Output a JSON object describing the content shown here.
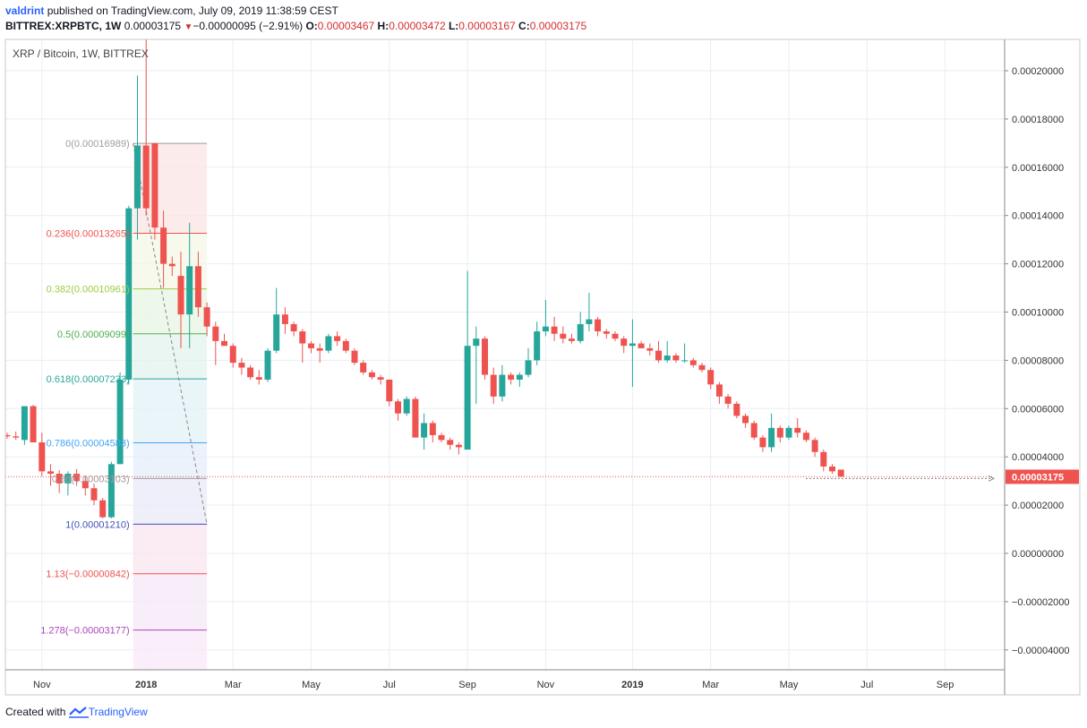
{
  "header": {
    "user": "valdrint",
    "published_text": "published on TradingView.com, July 09, 2019 11:38:59 CEST",
    "symbol": "BITTREX:XRPBTC, 1W",
    "last": "0.00003175",
    "change_arrow": "▼",
    "change": "−0.00000095 (−2.91%)",
    "o_label": "O:",
    "o": "0.00003467",
    "h_label": "H:",
    "h": "0.00003472",
    "l_label": "L:",
    "l": "0.00003167",
    "c_label": "C:",
    "c": "0.00003175"
  },
  "chart_title": "XRP / Bitcoin, 1W, BITTREX",
  "footer": {
    "created_with": "Created with",
    "brand": "TradingView"
  },
  "colors": {
    "up": "#26a69a",
    "down": "#ef5350",
    "grid": "#e8eef5",
    "price_label": "#ef5350"
  },
  "chart_data": {
    "type": "candlestick",
    "title": "XRP / Bitcoin, 1W, BITTREX",
    "ylim": [
      -4.8e-05,
      0.000212
    ],
    "y_ticks": [
      0.0002,
      0.00018,
      0.00016,
      0.00014,
      0.00012,
      0.0001,
      8e-05,
      6e-05,
      4e-05,
      2e-05,
      0.0,
      -2e-05,
      -4e-05
    ],
    "y_tick_labels": [
      "0.00020000",
      "0.00018000",
      "0.00016000",
      "0.00014000",
      "0.00012000",
      "0.00010000",
      "0.00008000",
      "0.00006000",
      "0.00004000",
      "0.00002000",
      "0.00000000",
      "−0.00002000",
      "−0.00004000"
    ],
    "x_labels": [
      {
        "label": "Nov",
        "week": 4
      },
      {
        "label": "2018",
        "week": 16,
        "bold": true
      },
      {
        "label": "Mar",
        "week": 26
      },
      {
        "label": "May",
        "week": 35
      },
      {
        "label": "Jul",
        "week": 44
      },
      {
        "label": "Sep",
        "week": 53
      },
      {
        "label": "Nov",
        "week": 62
      },
      {
        "label": "2019",
        "week": 72,
        "bold": true
      },
      {
        "label": "Mar",
        "week": 81
      },
      {
        "label": "May",
        "week": 90
      },
      {
        "label": "Jul",
        "week": 99
      },
      {
        "label": "Sep",
        "week": 108
      }
    ],
    "last_price": 3.175e-05,
    "last_price_label": "0.00003175",
    "candles": [
      [
        4.9e-05,
        5e-05,
        4.75e-05,
        4.85e-05
      ],
      [
        4.85e-05,
        5.05e-05,
        4.7e-05,
        4.8e-05
      ],
      [
        4.7e-05,
        6.1e-05,
        4.5e-05,
        6.1e-05
      ],
      [
        6.1e-05,
        6.15e-05,
        4.6e-05,
        4.6e-05
      ],
      [
        4.6e-05,
        5e-05,
        3.2e-05,
        3.4e-05
      ],
      [
        3.4e-05,
        3.7e-05,
        2.8e-05,
        3.3e-05
      ],
      [
        3.3e-05,
        3.45e-05,
        2.5e-05,
        2.9e-05
      ],
      [
        2.9e-05,
        3.4e-05,
        2.4e-05,
        3.3e-05
      ],
      [
        3.3e-05,
        3.5e-05,
        2.8e-05,
        3e-05
      ],
      [
        3e-05,
        3.2e-05,
        2.4e-05,
        2.7e-05
      ],
      [
        2.7e-05,
        2.9e-05,
        2e-05,
        2.2e-05
      ],
      [
        2.2e-05,
        2.3e-05,
        1.45e-05,
        1.5e-05
      ],
      [
        1.5e-05,
        3.8e-05,
        1.45e-05,
        3.7e-05
      ],
      [
        3.7e-05,
        7.5e-05,
        3.7e-05,
        7.2e-05
      ],
      [
        7.2e-05,
        0.000144,
        7e-05,
        0.000143
      ],
      [
        0.000143,
        0.000198,
        0.00013,
        0.000169
      ],
      [
        0.000169,
        0.000245,
        0.00014,
        0.000143
      ],
      [
        0.00017,
        0.00017,
        0.00013,
        0.000135
      ],
      [
        0.000135,
        0.000142,
        0.00011,
        0.00012
      ],
      [
        0.00012,
        0.000123,
        0.000115,
        0.000119
      ],
      [
        0.000115,
        0.000125,
        8.5e-05,
        9.9e-05
      ],
      [
        9.9e-05,
        0.000137,
        8.5e-05,
        0.000119
      ],
      [
        0.000119,
        0.000125,
        9.8e-05,
        0.000102
      ],
      [
        0.000102,
        0.000104,
        9e-05,
        9.4e-05
      ],
      [
        9.4e-05,
        9.6e-05,
        7.8e-05,
        8.8e-05
      ],
      [
        8.8e-05,
        9.1e-05,
        8.6e-05,
        8.6e-05
      ],
      [
        8.6e-05,
        8.7e-05,
        7.7e-05,
        7.9e-05
      ],
      [
        7.9e-05,
        8.1e-05,
        7.4e-05,
        7.7e-05
      ],
      [
        7.7e-05,
        7.8e-05,
        7.2e-05,
        7.3e-05
      ],
      [
        7.3e-05,
        7.6e-05,
        7e-05,
        7.2e-05
      ],
      [
        7.2e-05,
        8.5e-05,
        7.1e-05,
        8.4e-05
      ],
      [
        8.4e-05,
        0.00011,
        8.3e-05,
        9.9e-05
      ],
      [
        9.9e-05,
        0.000102,
        9.1e-05,
        9.5e-05
      ],
      [
        9.5e-05,
        9.6e-05,
        9e-05,
        9.2e-05
      ],
      [
        9.2e-05,
        9.3e-05,
        7.9e-05,
        8.7e-05
      ],
      [
        8.7e-05,
        8.8e-05,
        8.3e-05,
        8.5e-05
      ],
      [
        8.5e-05,
        8.7e-05,
        7.9e-05,
        8.4e-05
      ],
      [
        8.4e-05,
        9.1e-05,
        8.3e-05,
        9e-05
      ],
      [
        9e-05,
        9.2e-05,
        8.6e-05,
        8.8e-05
      ],
      [
        8.8e-05,
        8.9e-05,
        8.3e-05,
        8.4e-05
      ],
      [
        8.4e-05,
        8.5e-05,
        7.8e-05,
        7.9e-05
      ],
      [
        7.9e-05,
        8e-05,
        7.4e-05,
        7.5e-05
      ],
      [
        7.5e-05,
        7.6e-05,
        7.2e-05,
        7.3e-05
      ],
      [
        7.3e-05,
        7.4e-05,
        7e-05,
        7.2e-05
      ],
      [
        7.2e-05,
        7.2e-05,
        6.1e-05,
        6.3e-05
      ],
      [
        6.3e-05,
        6.4e-05,
        5.5e-05,
        5.8e-05
      ],
      [
        5.8e-05,
        6.5e-05,
        5.7e-05,
        6.4e-05
      ],
      [
        6.4e-05,
        6.5e-05,
        4.8e-05,
        4.8e-05
      ],
      [
        4.8e-05,
        5.8e-05,
        4.3e-05,
        5.4e-05
      ],
      [
        5.4e-05,
        5.5e-05,
        4.6e-05,
        4.9e-05
      ],
      [
        4.9e-05,
        5e-05,
        4.6e-05,
        4.7e-05
      ],
      [
        4.7e-05,
        4.8e-05,
        4.3e-05,
        4.5e-05
      ],
      [
        4.5e-05,
        4.6e-05,
        4.1e-05,
        4.4e-05
      ],
      [
        4.3e-05,
        0.000117,
        4.3e-05,
        8.6e-05
      ],
      [
        8.6e-05,
        9.4e-05,
        6.2e-05,
        8.9e-05
      ],
      [
        8.9e-05,
        9e-05,
        7.2e-05,
        7.4e-05
      ],
      [
        7.4e-05,
        7.7e-05,
        6.2e-05,
        6.5e-05
      ],
      [
        6.5e-05,
        7.8e-05,
        6.3e-05,
        7.4e-05
      ],
      [
        7.4e-05,
        7.5e-05,
        7e-05,
        7.2e-05
      ],
      [
        7.2e-05,
        7.5e-05,
        6.9e-05,
        7.4e-05
      ],
      [
        7.4e-05,
        8.5e-05,
        7.3e-05,
        8e-05
      ],
      [
        8e-05,
        9.6e-05,
        7.8e-05,
        9.2e-05
      ],
      [
        9.2e-05,
        0.000105,
        9e-05,
        9.4e-05
      ],
      [
        9.4e-05,
        9.8e-05,
        8.8e-05,
        9.1e-05
      ],
      [
        9.1e-05,
        9.4e-05,
        8.7e-05,
        8.9e-05
      ],
      [
        8.9e-05,
        9.1e-05,
        8.7e-05,
        8.8e-05
      ],
      [
        8.8e-05,
        0.0001,
        8.7e-05,
        9.5e-05
      ],
      [
        9.5e-05,
        0.000108,
        9.2e-05,
        9.7e-05
      ],
      [
        9.7e-05,
        9.8e-05,
        9e-05,
        9.2e-05
      ],
      [
        9.2e-05,
        9.3e-05,
        8.9e-05,
        9.1e-05
      ],
      [
        9.1e-05,
        9.2e-05,
        8.8e-05,
        8.9e-05
      ],
      [
        8.9e-05,
        9e-05,
        8.3e-05,
        8.6e-05
      ],
      [
        8.6e-05,
        9.7e-05,
        6.9e-05,
        8.7e-05
      ],
      [
        8.7e-05,
        8.8e-05,
        8.5e-05,
        8.5e-05
      ],
      [
        8.5e-05,
        8.7e-05,
        8.2e-05,
        8.4e-05
      ],
      [
        8.4e-05,
        8.8e-05,
        7.9e-05,
        8e-05
      ],
      [
        8e-05,
        8.8e-05,
        7.9e-05,
        8.2e-05
      ],
      [
        8.2e-05,
        8.3e-05,
        7.9e-05,
        8e-05
      ],
      [
        8e-05,
        8.7e-05,
        7.9e-05,
        8e-05
      ],
      [
        8e-05,
        8.1e-05,
        7.7e-05,
        7.8e-05
      ],
      [
        7.8e-05,
        7.9e-05,
        7.5e-05,
        7.6e-05
      ],
      [
        7.6e-05,
        7.7e-05,
        6.8e-05,
        7e-05
      ],
      [
        7e-05,
        7.1e-05,
        6.2e-05,
        6.5e-05
      ],
      [
        6.5e-05,
        6.6e-05,
        6e-05,
        6.2e-05
      ],
      [
        6.2e-05,
        6.3e-05,
        5.6e-05,
        5.7e-05
      ],
      [
        5.7e-05,
        5.8e-05,
        5.2e-05,
        5.4e-05
      ],
      [
        5.4e-05,
        5.5e-05,
        4.7e-05,
        4.8e-05
      ],
      [
        4.8e-05,
        4.9e-05,
        4.2e-05,
        4.4e-05
      ],
      [
        4.4e-05,
        5.8e-05,
        4.2e-05,
        5.2e-05
      ],
      [
        5.2e-05,
        5.3e-05,
        4.6e-05,
        4.8e-05
      ],
      [
        4.8e-05,
        5.3e-05,
        4.7e-05,
        5.2e-05
      ],
      [
        5.2e-05,
        5.6e-05,
        4.8e-05,
        5e-05
      ],
      [
        5e-05,
        5.1e-05,
        4.6e-05,
        4.7e-05
      ],
      [
        4.7e-05,
        4.8e-05,
        4e-05,
        4.2e-05
      ],
      [
        4.2e-05,
        4.3e-05,
        3.4e-05,
        3.6e-05
      ],
      [
        3.6e-05,
        3.7e-05,
        3.3e-05,
        3.4e-05
      ],
      [
        3.47e-05,
        3.47e-05,
        3.17e-05,
        3.18e-05
      ]
    ],
    "fib": {
      "start_week": 14.5,
      "end_week": 23,
      "levels": [
        {
          "label": "0(0.00016989)",
          "value": 0.00016989,
          "color": "#9e9e9e"
        },
        {
          "label": "0.236(0.00013265)",
          "value": 0.00013265,
          "color": "#ef5350"
        },
        {
          "label": "0.382(0.00010961)",
          "value": 0.00010961,
          "color": "#9ccc3c"
        },
        {
          "label": "0.5(0.00009099)",
          "value": 9.099e-05,
          "color": "#4caf50"
        },
        {
          "label": "0.618(0.00007233)",
          "value": 7.233e-05,
          "color": "#26a69a"
        },
        {
          "label": "0.786(0.00004583)",
          "value": 4.583e-05,
          "color": "#42a5f5"
        },
        {
          "label": "0.88(0.00003103)",
          "value": 3.103e-05,
          "color": "#9e9e9e"
        },
        {
          "label": "1(0.00001210)",
          "value": 1.21e-05,
          "color": "#3f51b5"
        },
        {
          "label": "1.13(−0.00000842)",
          "value": -8.42e-06,
          "color": "#ef5350"
        },
        {
          "label": "1.278(−0.00003177)",
          "value": -3.177e-05,
          "color": "#ab47bc"
        }
      ]
    }
  }
}
